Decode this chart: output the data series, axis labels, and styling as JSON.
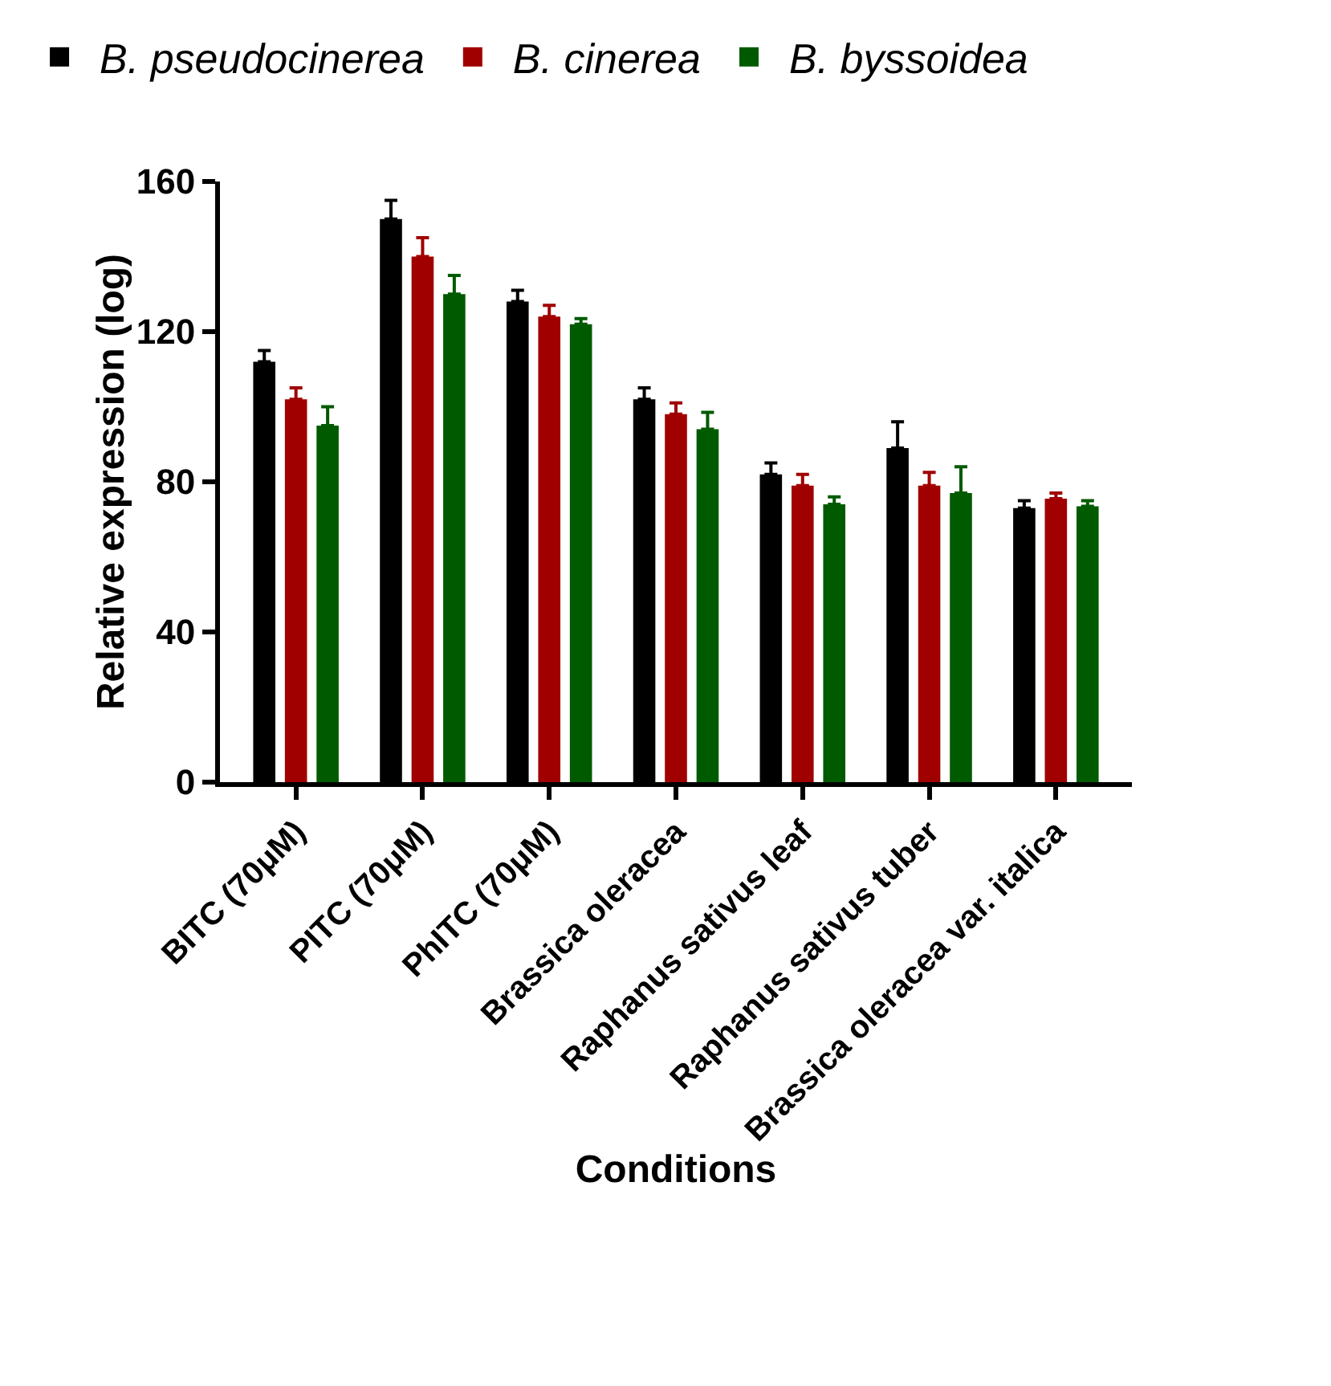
{
  "chart_data": {
    "type": "bar",
    "xlabel": "Conditions",
    "ylabel": "Relative expression (log)",
    "categories": [
      "BITC (70μM)",
      "PITC (70μM)",
      "PhITC (70μM)",
      "Brassica oleracea",
      "Raphanus sativus leaf",
      "Raphanus sativus tuber",
      "Brassica oleracea var. italica"
    ],
    "series": [
      {
        "name": "B. pseudocinerea",
        "color": "#000000",
        "values": [
          112,
          150,
          128,
          102,
          82,
          89,
          73
        ],
        "errors": [
          [
            112,
            115
          ],
          [
            150,
            155
          ],
          [
            128,
            131
          ],
          [
            102,
            105
          ],
          [
            82,
            85
          ],
          [
            89,
            96
          ],
          [
            73,
            75
          ]
        ]
      },
      {
        "name": "B. cinerea",
        "color": "#a00000",
        "values": [
          102,
          140,
          124,
          98,
          79,
          79,
          75.5
        ],
        "errors": [
          [
            102,
            105
          ],
          [
            140,
            145
          ],
          [
            124,
            127
          ],
          [
            98,
            101
          ],
          [
            79,
            82
          ],
          [
            79,
            82.5
          ],
          [
            75.5,
            77
          ]
        ]
      },
      {
        "name": "B. byssoidea",
        "color": "#005a00",
        "values": [
          95,
          130,
          122,
          94,
          74,
          77,
          73.5
        ],
        "errors": [
          [
            95,
            100
          ],
          [
            130,
            135
          ],
          [
            122,
            123.5
          ],
          [
            94,
            98.5
          ],
          [
            74,
            76
          ],
          [
            77,
            84
          ],
          [
            73.5,
            75
          ]
        ]
      }
    ],
    "ylim": [
      0,
      160
    ],
    "yticks": [
      0,
      40,
      80,
      120,
      160
    ],
    "grid": false,
    "legend": "top"
  }
}
